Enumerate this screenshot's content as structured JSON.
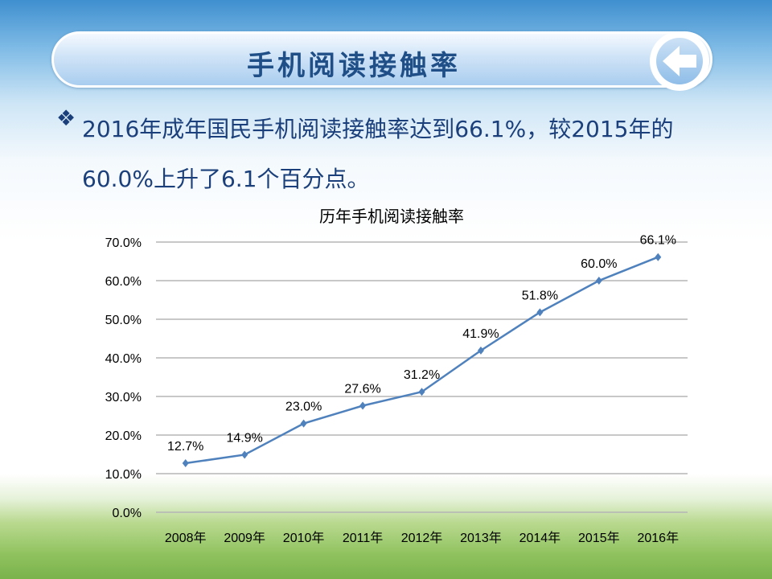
{
  "header": {
    "title": "手机阅读接触率",
    "back_icon": "back-arrow-icon"
  },
  "body": {
    "bullet_icon": "diamond-bullet-icon",
    "text": "2016年成年国民手机阅读接触率达到66.1%，较2015年的60.0%上升了6.1个百分点。"
  },
  "chart_data": {
    "type": "line",
    "title": "历年手机阅读接触率",
    "categories": [
      "2008年",
      "2009年",
      "2010年",
      "2011年",
      "2012年",
      "2013年",
      "2014年",
      "2015年",
      "2016年"
    ],
    "series": [
      {
        "name": "手机阅读接触率",
        "values": [
          12.7,
          14.9,
          23.0,
          27.6,
          31.2,
          41.9,
          51.8,
          60.0,
          66.1
        ],
        "color": "#4f81bd"
      }
    ],
    "data_labels": [
      "12.7%",
      "14.9%",
      "23.0%",
      "27.6%",
      "31.2%",
      "41.9%",
      "51.8%",
      "60.0%",
      "66.1%"
    ],
    "yticks": [
      "0.0%",
      "10.0%",
      "20.0%",
      "30.0%",
      "40.0%",
      "50.0%",
      "60.0%",
      "70.0%"
    ],
    "ylim": [
      0,
      70
    ],
    "xlabel": "",
    "ylabel": "",
    "grid": true,
    "legend": "none"
  }
}
